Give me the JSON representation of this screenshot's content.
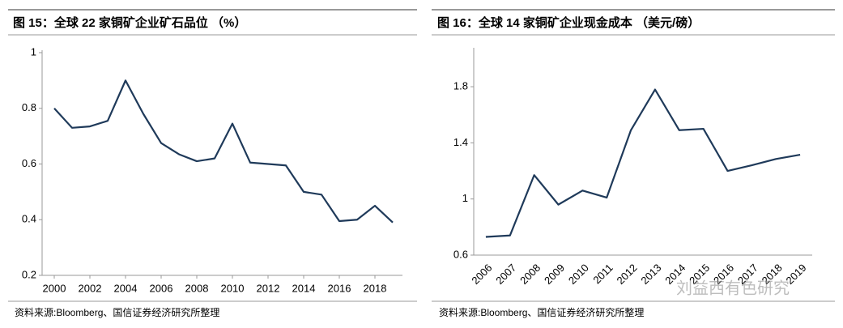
{
  "chart_data": [
    {
      "type": "line",
      "title": "图 15：全球 22 家铜矿企业矿石品位 （%）",
      "x": [
        2000,
        2001,
        2002,
        2003,
        2004,
        2005,
        2006,
        2007,
        2008,
        2009,
        2010,
        2011,
        2012,
        2013,
        2014,
        2015,
        2016,
        2017,
        2018,
        2019
      ],
      "values": [
        0.8,
        0.73,
        0.735,
        0.755,
        0.9,
        0.78,
        0.675,
        0.635,
        0.61,
        0.62,
        0.745,
        0.605,
        0.6,
        0.595,
        0.5,
        0.49,
        0.395,
        0.4,
        0.45,
        0.39
      ],
      "color": "#1f3a5a",
      "xlim": [
        2000,
        2019
      ],
      "xticks": [
        2000,
        2002,
        2004,
        2006,
        2008,
        2010,
        2012,
        2014,
        2016,
        2018
      ],
      "ylim": [
        0.2,
        1
      ],
      "yticks": [
        0.2,
        0.4,
        0.6,
        0.8,
        1
      ],
      "source": "资料来源:Bloomberg、国信证券经济研究所整理"
    },
    {
      "type": "line",
      "title": "图 16：全球 14 家铜矿企业现金成本 （美元/磅）",
      "categories": [
        "2006",
        "2007",
        "2008",
        "2009",
        "2010",
        "2011",
        "2012",
        "2013",
        "2014",
        "2015",
        "2016",
        "2017",
        "2018",
        "2019"
      ],
      "values": [
        0.73,
        0.74,
        1.17,
        0.96,
        1.06,
        1.01,
        1.49,
        1.78,
        1.49,
        1.5,
        1.2,
        1.24,
        1.285,
        1.315
      ],
      "color": "#1f3a5a",
      "ylim": [
        0.6,
        2.06
      ],
      "yticks": [
        0.6,
        1,
        1.4,
        1.8
      ],
      "source": "资料来源:Bloomberg、国信证券经济研究所整理",
      "watermark": "刘益西有色研究"
    }
  ]
}
